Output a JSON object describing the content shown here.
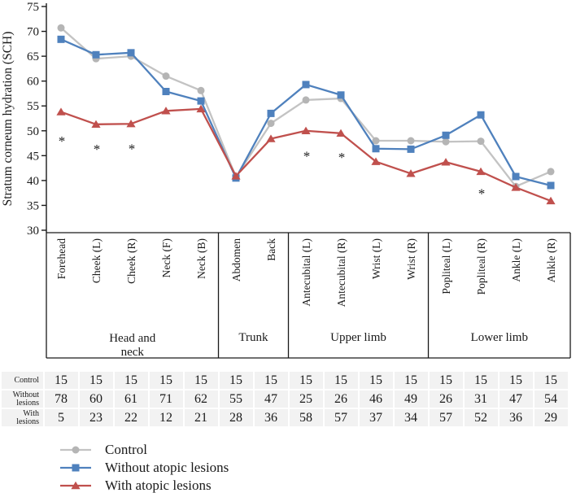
{
  "chart_data": {
    "type": "line",
    "title": "",
    "xlabel": "",
    "ylabel": "Stratum corneum hydration (SCH)",
    "ylim": [
      30,
      75
    ],
    "yticks": [
      30,
      35,
      40,
      45,
      50,
      55,
      60,
      65,
      70,
      75
    ],
    "grid": false,
    "legend_position": "bottom-left",
    "categories": [
      "Forehead",
      "Cheek (L)",
      "Cheek (R)",
      "Neck (F)",
      "Neck (B)",
      "Abdomen",
      "Back",
      "Antecubital (L)",
      "Antecubital (R)",
      "Wrist (L)",
      "Wrist (R)",
      "Popliteal (L)",
      "Popliteal (R)",
      "Ankle (L)",
      "Ankle (R)"
    ],
    "groups": [
      {
        "label": "Head and neck",
        "label_lines": [
          "Head and",
          "neck"
        ],
        "start": 0,
        "end": 4
      },
      {
        "label": "Trunk",
        "label_lines": [
          "Trunk"
        ],
        "start": 5,
        "end": 6
      },
      {
        "label": "Upper limb",
        "label_lines": [
          "Upper limb"
        ],
        "start": 7,
        "end": 10
      },
      {
        "label": "Lower limb",
        "label_lines": [
          "Lower limb"
        ],
        "start": 11,
        "end": 14
      }
    ],
    "series": [
      {
        "name": "Control",
        "marker": "circle",
        "color": "#b5b5b5",
        "line_color": "#c3c3c3",
        "values": [
          70.7,
          64.5,
          65.0,
          61.0,
          58.1,
          40.7,
          51.5,
          56.2,
          56.5,
          48.0,
          48.0,
          47.8,
          47.9,
          38.8,
          41.8
        ]
      },
      {
        "name": "Without atopic lesions",
        "marker": "square",
        "color": "#4f81bd",
        "line_color": "#4f81bd",
        "values": [
          68.4,
          65.3,
          65.7,
          57.9,
          56.0,
          40.5,
          53.5,
          59.3,
          57.2,
          46.4,
          46.3,
          49.1,
          53.2,
          40.8,
          39.0
        ]
      },
      {
        "name": "With atopic lesions",
        "marker": "triangle",
        "color": "#c0504d",
        "line_color": "#c0504d",
        "values": [
          53.8,
          51.3,
          51.4,
          54.0,
          54.4,
          40.9,
          48.4,
          50.0,
          49.5,
          43.8,
          41.4,
          43.7,
          41.8,
          38.6,
          35.9
        ]
      }
    ],
    "annotations": {
      "symbol": "*",
      "points": [
        {
          "category_index": 0,
          "y": 47.8
        },
        {
          "category_index": 1,
          "y": 46.2
        },
        {
          "category_index": 2,
          "y": 46.3
        },
        {
          "category_index": 7,
          "y": 44.8
        },
        {
          "category_index": 8,
          "y": 44.6
        },
        {
          "category_index": 12,
          "y": 37.3
        }
      ]
    }
  },
  "table": {
    "rows": [
      {
        "label": "Control",
        "label_lines": [
          "Control"
        ],
        "values": [
          "15",
          "15",
          "15",
          "15",
          "15",
          "15",
          "15",
          "15",
          "15",
          "15",
          "15",
          "15",
          "15",
          "15",
          "15"
        ]
      },
      {
        "label": "Without lesions",
        "label_lines": [
          "Without",
          "lesions"
        ],
        "values": [
          "78",
          "60",
          "61",
          "71",
          "62",
          "55",
          "47",
          "25",
          "26",
          "46",
          "49",
          "26",
          "31",
          "47",
          "54"
        ]
      },
      {
        "label": "With lesions",
        "label_lines": [
          "With",
          "lesions"
        ],
        "values": [
          "5",
          "23",
          "22",
          "12",
          "21",
          "28",
          "36",
          "58",
          "57",
          "37",
          "34",
          "57",
          "52",
          "36",
          "29"
        ]
      }
    ]
  },
  "legend": {
    "items": [
      {
        "label": "Control",
        "marker": "circle",
        "color": "#b5b5b5",
        "line_color": "#c3c3c3"
      },
      {
        "label": "Without atopic lesions",
        "marker": "square",
        "color": "#4f81bd",
        "line_color": "#4f81bd"
      },
      {
        "label": "With atopic lesions",
        "marker": "triangle",
        "color": "#c0504d",
        "line_color": "#c0504d"
      }
    ]
  }
}
